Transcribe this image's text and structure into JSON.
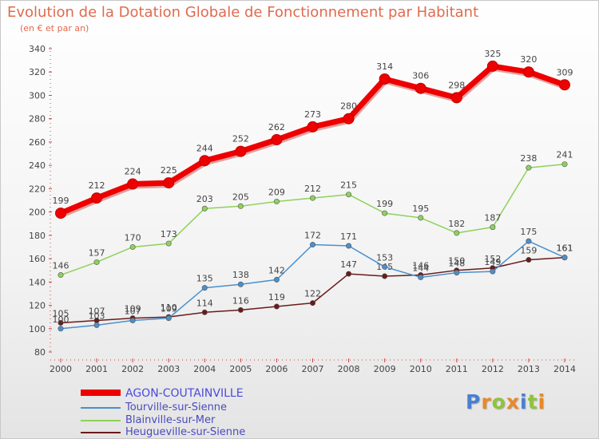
{
  "chart_data": {
    "type": "line",
    "title": "Evolution de la Dotation Globale de Fonctionnement par Habitant",
    "subtitle": "(en € et par an)",
    "x": [
      "2000",
      "2001",
      "2002",
      "2003",
      "2004",
      "2005",
      "2006",
      "2007",
      "2008",
      "2009",
      "2010",
      "2011",
      "2012",
      "2013",
      "2014"
    ],
    "ylim": [
      80,
      340
    ],
    "yticks": [
      80,
      100,
      120,
      140,
      160,
      180,
      200,
      220,
      240,
      260,
      280,
      300,
      320,
      340
    ],
    "grid": false,
    "legend_position": "bottom-left",
    "series": [
      {
        "name": "AGON-COUTAINVILLE",
        "color": "#ee0000",
        "values": [
          199,
          212,
          224,
          225,
          244,
          252,
          262,
          273,
          280,
          314,
          306,
          298,
          325,
          320,
          309
        ]
      },
      {
        "name": "Tourville-sur-Sienne",
        "color": "#4a90cc",
        "values": [
          100,
          103,
          107,
          109,
          135,
          138,
          142,
          172,
          171,
          153,
          144,
          148,
          149,
          175,
          161
        ]
      },
      {
        "name": "Blainville-sur-Mer",
        "color": "#8fd15a",
        "values": [
          146,
          157,
          170,
          173,
          203,
          205,
          209,
          212,
          215,
          199,
          195,
          182,
          187,
          238,
          241
        ]
      },
      {
        "name": "Heugueville-sur-Sienne",
        "color": "#6b1a1a",
        "values": [
          105,
          107,
          109,
          110,
          114,
          116,
          119,
          122,
          147,
          145,
          146,
          150,
          152,
          159,
          161
        ]
      }
    ]
  },
  "logo": {
    "letters": [
      {
        "ch": "P",
        "color": "#4a7fd0"
      },
      {
        "ch": "r",
        "color": "#e8892a"
      },
      {
        "ch": "o",
        "color": "#8fc43a"
      },
      {
        "ch": "x",
        "color": "#e8892a"
      },
      {
        "ch": "i",
        "color": "#4a7fd0"
      },
      {
        "ch": "t",
        "color": "#8fc43a"
      },
      {
        "ch": "i",
        "color": "#e8892a"
      }
    ]
  }
}
